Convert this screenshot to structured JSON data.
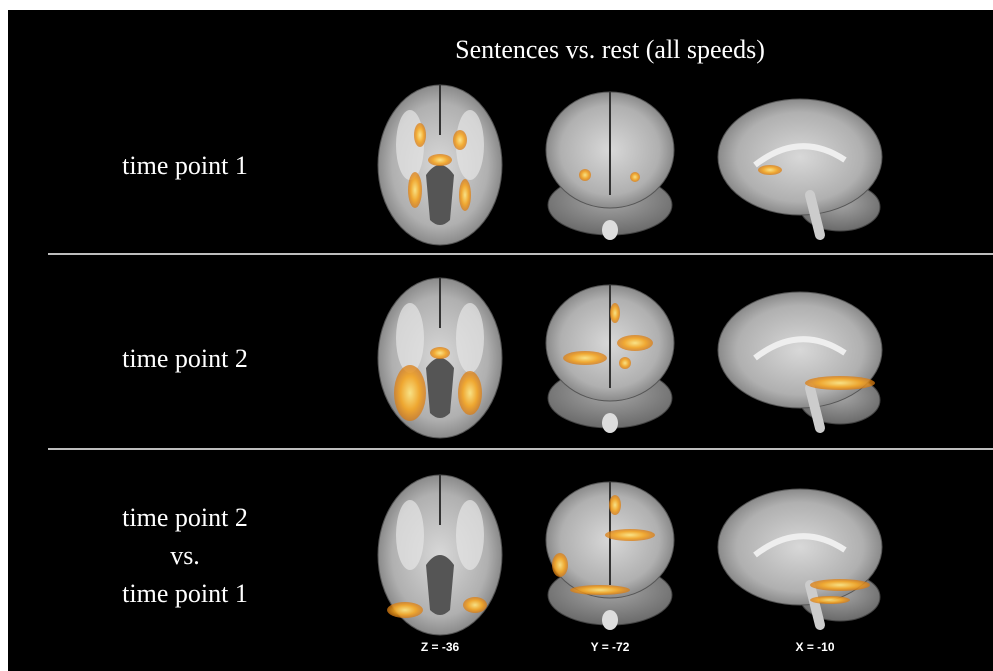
{
  "title": "Sentences vs. rest (all speeds)",
  "rows": [
    {
      "label": [
        "time point 1"
      ]
    },
    {
      "label": [
        "time point 2"
      ]
    },
    {
      "label": [
        "time point 2",
        "vs.",
        "time point 1"
      ]
    }
  ],
  "coordinates": [
    "Z = -36",
    "Y = -72",
    "X = -10"
  ]
}
